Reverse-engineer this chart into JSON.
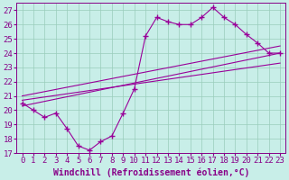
{
  "xlabel": "Windchill (Refroidissement éolien,°C)",
  "background_color": "#c8eee8",
  "line_color": "#990099",
  "marker": "+",
  "xlim": [
    -0.5,
    23.5
  ],
  "ylim": [
    17,
    27.5
  ],
  "yticks": [
    17,
    18,
    19,
    20,
    21,
    22,
    23,
    24,
    25,
    26,
    27
  ],
  "xticks": [
    0,
    1,
    2,
    3,
    4,
    5,
    6,
    7,
    8,
    9,
    10,
    11,
    12,
    13,
    14,
    15,
    16,
    17,
    18,
    19,
    20,
    21,
    22,
    23
  ],
  "line1_x": [
    0,
    1,
    2,
    3,
    4,
    5,
    6,
    7,
    8,
    9,
    10,
    11,
    12,
    13,
    14,
    15,
    16,
    17,
    18,
    19,
    20,
    21,
    22,
    23
  ],
  "line1_y": [
    20.5,
    20.0,
    19.5,
    19.8,
    18.7,
    17.5,
    17.2,
    17.8,
    18.2,
    19.8,
    21.5,
    25.2,
    26.5,
    26.2,
    26.0,
    26.0,
    26.5,
    27.2,
    26.5,
    26.0,
    25.3,
    24.7,
    24.0,
    24.0
  ],
  "line2_x": [
    0,
    23
  ],
  "line2_y": [
    20.3,
    24.0
  ],
  "line3_x": [
    0,
    23
  ],
  "line3_y": [
    20.7,
    23.3
  ],
  "line4_x": [
    0,
    23
  ],
  "line4_y": [
    21.0,
    24.5
  ],
  "grid_color": "#99ccbb",
  "font_color": "#880088",
  "font_size": 6.5,
  "xlabel_fontsize": 7.0
}
